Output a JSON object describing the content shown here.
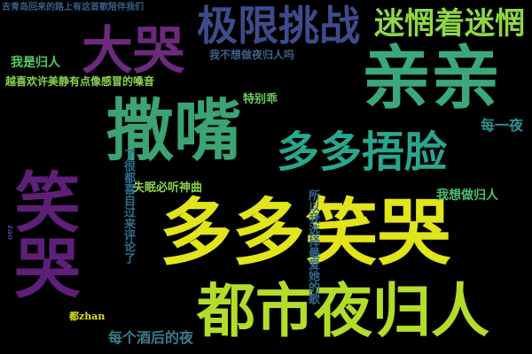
{
  "words": [
    {
      "text": "亲亲",
      "color": "#3ba87a"
    },
    {
      "text": "撒嘴",
      "color": "#3ca374"
    },
    {
      "text": "多多笑哭",
      "color": "#e2e41c"
    },
    {
      "text": "都市夜归人",
      "color": "#b3dc2b"
    },
    {
      "text": "大哭",
      "color": "#6b2a7c"
    },
    {
      "text": "笑哭",
      "color": "#5d1f78"
    },
    {
      "text": "极限挑战",
      "color": "#3e4b8b"
    },
    {
      "text": "迷惘着迷惘",
      "color": "#8fd744"
    },
    {
      "text": "多多捂脸",
      "color": "#2aa68e"
    },
    {
      "text": "失眠必听神曲",
      "color": "#8ad24f"
    },
    {
      "text": "每个酒后的夜",
      "color": "#3b7a8c"
    },
    {
      "text": "我想做归人",
      "color": "#48c16e"
    },
    {
      "text": "每一夜",
      "color": "#2d908d"
    },
    {
      "text": "特别乖",
      "color": "#6ccd5a"
    },
    {
      "text": "我是归人",
      "color": "#5ac864"
    },
    {
      "text": "我不想做夜归人吗",
      "color": "#3e5f8a"
    },
    {
      "text": "越喜欢许美静有点像感冒的嗓音",
      "color": "#8ad34d"
    },
    {
      "text": "去青岛回来的路上有这首歌陪伴我们",
      "color": "#34618d"
    },
    {
      "text": "所以我选择最爱她的歌",
      "color": "#31688e"
    },
    {
      "text": "了很都喜自过来评论了",
      "color": "#2e6e8e"
    },
    {
      "text": "都zhan",
      "color": "#dde318"
    },
    {
      "text": "zao",
      "color": "#404688"
    }
  ]
}
